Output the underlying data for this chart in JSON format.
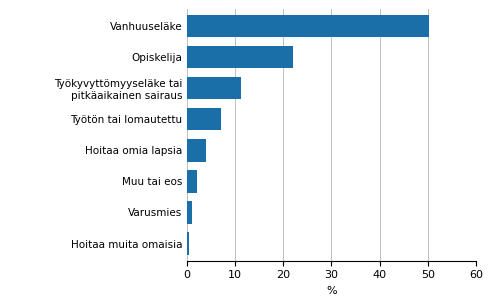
{
  "categories": [
    "Hoitaa muita omaisia",
    "Varusmies",
    "Muu tai eos",
    "Hoitaa omia lapsia",
    "Työtön tai lomautettu",
    "Työkyvyttömyyseläke tai\npitkäaikainen sairaus",
    "Opiskelija",
    "Vanhuuseläke"
  ],
  "values": [
    0.4,
    1.1,
    2.2,
    4.1,
    7.1,
    11.2,
    22.0,
    50.3
  ],
  "bar_color": "#1a6fa8",
  "xlabel": "%",
  "xlim": [
    0,
    60
  ],
  "xticks": [
    0,
    10,
    20,
    30,
    40,
    50,
    60
  ],
  "grid_color": "#c0c0c0",
  "background_color": "#ffffff",
  "bar_height": 0.72,
  "label_fontsize": 7.5,
  "tick_fontsize": 8.0
}
